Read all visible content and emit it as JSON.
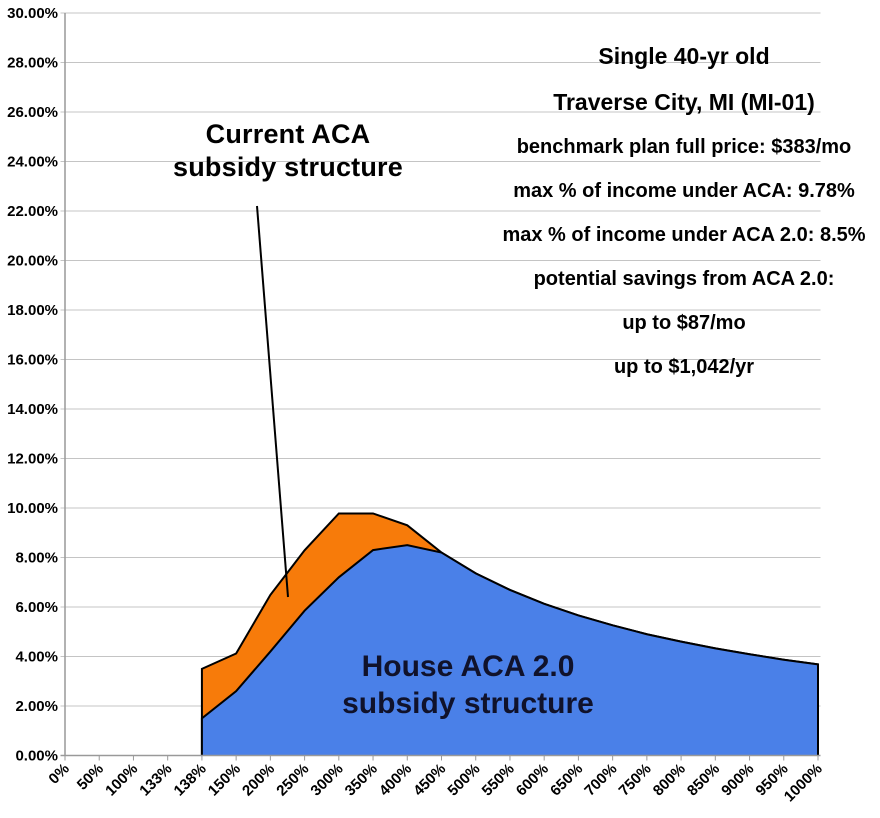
{
  "chart_data": {
    "type": "area",
    "title": "",
    "categories": [
      "0%",
      "50%",
      "100%",
      "133%",
      "138%",
      "150%",
      "200%",
      "250%",
      "300%",
      "350%",
      "400%",
      "450%",
      "500%",
      "550%",
      "600%",
      "650%",
      "700%",
      "750%",
      "800%",
      "850%",
      "900%",
      "950%",
      "1000%"
    ],
    "y_ticks": [
      "0.00%",
      "2.00%",
      "4.00%",
      "6.00%",
      "8.00%",
      "10.00%",
      "12.00%",
      "14.00%",
      "16.00%",
      "18.00%",
      "20.00%",
      "22.00%",
      "24.00%",
      "26.00%",
      "28.00%",
      "30.00%"
    ],
    "y_max": 30,
    "grid": true,
    "legend_position": "none",
    "series": [
      {
        "name": "Current ACA subsidy structure",
        "color": "#F77B0A",
        "values": [
          null,
          null,
          null,
          null,
          3.5,
          4.12,
          6.49,
          8.29,
          9.78,
          9.78,
          9.3,
          8.2,
          7.36,
          6.69,
          6.13,
          5.66,
          5.26,
          4.9,
          4.6,
          4.33,
          4.09,
          3.87,
          3.68
        ]
      },
      {
        "name": "House ACA 2.0 subsidy structure",
        "color": "#4A80E8",
        "values": [
          null,
          null,
          null,
          null,
          1.5,
          2.6,
          4.2,
          5.85,
          7.2,
          8.3,
          8.5,
          8.2,
          7.36,
          6.69,
          6.13,
          5.66,
          5.26,
          4.9,
          4.6,
          4.33,
          4.09,
          3.87,
          3.68
        ]
      }
    ]
  },
  "labels": {
    "current_aca": "Current ACA\nsubsidy structure",
    "house_aca": "House ACA 2.0\nsubsidy structure"
  },
  "info_box": {
    "title_lines": [
      "Single 40-yr old",
      "Traverse City, MI (MI-01)"
    ],
    "detail_lines": [
      "benchmark plan full price: $383/mo",
      "max % of income under ACA: 9.78%",
      "max % of income under ACA 2.0: 8.5%",
      "potential savings from ACA 2.0:",
      "up to $87/mo",
      "up to $1,042/yr"
    ]
  },
  "colors": {
    "current_aca_fill": "#F77B0A",
    "house_aca_fill": "#4A80E8",
    "area_outline": "#000000",
    "gridline": "#C4C4C4",
    "axis": "#999999",
    "tick_text": "#000000",
    "house_label_text": "#10122B"
  }
}
